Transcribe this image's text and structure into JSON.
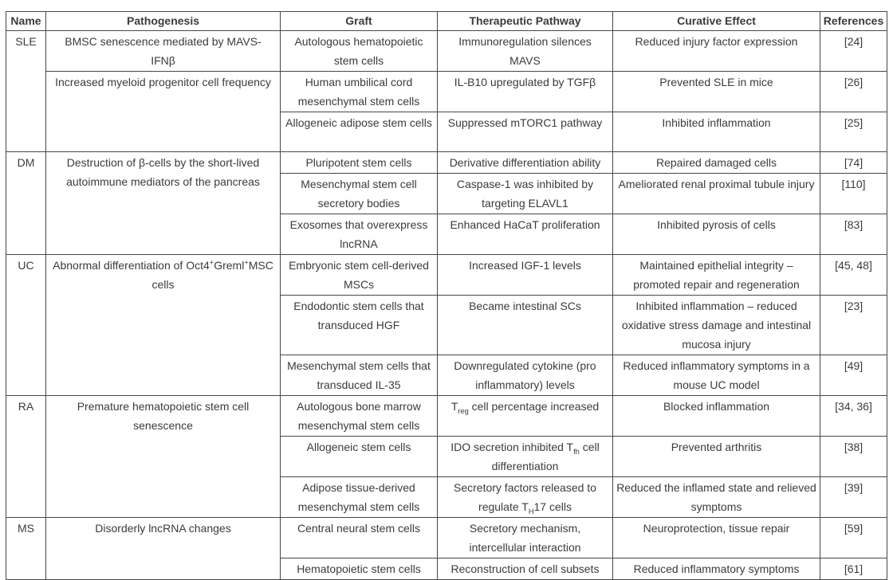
{
  "colors": {
    "text": "#3b3b3b",
    "border": "#474747",
    "background": "#ffffff"
  },
  "table": {
    "headers": [
      "Name",
      "Pathogenesis",
      "Graft",
      "Therapeutic Pathway",
      "Curative Effect",
      "References"
    ],
    "rows": [
      {
        "name": "SLE",
        "pathogenesis_html": "BMSC senescence mediated by MAVS-<br>IFNβ",
        "graft": "Autologous hematopoietic stem cells",
        "pathway": "Immunoregulation silences MAVS",
        "effect": "Reduced injury factor expression",
        "ref": "[24]"
      },
      {
        "pathogenesis": "Increased myeloid progenitor cell frequency",
        "graft": "Human umbilical cord mesenchymal stem cells",
        "pathway": "IL-B10 upregulated by TGFβ",
        "effect": "Prevented SLE in mice",
        "ref": "[26]"
      },
      {
        "graft": "Allogeneic adipose stem cells",
        "pathway": "Suppressed mTORC1 pathway",
        "effect": "Inhibited inflammation",
        "ref": "[25]"
      },
      {
        "name": "DM",
        "pathogenesis": "Destruction of β-cells by the short-lived autoimmune mediators of the pancreas",
        "graft": "Pluripotent stem cells",
        "pathway": "Derivative differentiation ability",
        "effect": "Repaired damaged cells",
        "ref": "[74]"
      },
      {
        "graft": "Mesenchymal stem cell secretory bodies",
        "pathway": "Caspase-1 was inhibited by targeting ELAVL1",
        "effect": "Ameliorated renal proximal tubule injury",
        "ref": "[110]"
      },
      {
        "graft": "Exosomes that overexpress lncRNA",
        "pathway": "Enhanced HaCaT proliferation",
        "effect": "Inhibited pyrosis of cells",
        "ref": "[83]"
      },
      {
        "name": "UC",
        "pathogenesis_html": "Abnormal differentiation of Oct4<sup>+</sup>Greml<sup>+</sup>MSC cells",
        "graft": "Embryonic stem cell-derived MSCs",
        "pathway": "Increased IGF-1 levels",
        "effect": "Maintained epithelial integrity – promoted repair and regeneration",
        "ref": "[45, 48]"
      },
      {
        "graft": "Endodontic stem cells that transduced HGF",
        "pathway": "Became intestinal SCs",
        "effect": "Inhibited inflammation – reduced oxidative stress damage and intestinal mucosa injury",
        "ref": "[23]"
      },
      {
        "graft": "Mesenchymal stem cells that transduced IL-35",
        "pathway": "Downregulated cytokine (pro inflammatory) levels",
        "effect": "Reduced inflammatory symptoms in a mouse UC model",
        "ref": "[49]"
      },
      {
        "name": "RA",
        "pathogenesis": "Premature hematopoietic stem cell senescence",
        "graft": "Autologous bone marrow mesenchymal stem cells",
        "pathway_html": "T<sub>reg</sub> cell percentage increased",
        "effect": "Blocked inflammation",
        "ref": "[34, 36]"
      },
      {
        "graft": "Allogeneic stem cells",
        "pathway_html": "IDO secretion inhibited T<sub>fh</sub> cell differentiation",
        "effect": "Prevented arthritis",
        "ref": "[38]"
      },
      {
        "graft": "Adipose tissue-derived mesenchymal stem cells",
        "pathway_html": "Secretory factors released to regulate T<sub>H</sub>17 cells",
        "effect": "Reduced the inflamed state and relieved symptoms",
        "ref": "[39]"
      },
      {
        "name": "MS",
        "pathogenesis": "Disorderly lncRNA changes",
        "graft": "Central neural stem cells",
        "pathway": "Secretory mechanism, intercellular interaction",
        "effect": "Neuroprotection, tissue repair",
        "ref": "[59]"
      },
      {
        "graft": "Hematopoietic stem cells",
        "pathway": "Reconstruction of cell subsets",
        "effect": "Reduced inflammatory symptoms",
        "ref": "[61]"
      }
    ]
  }
}
